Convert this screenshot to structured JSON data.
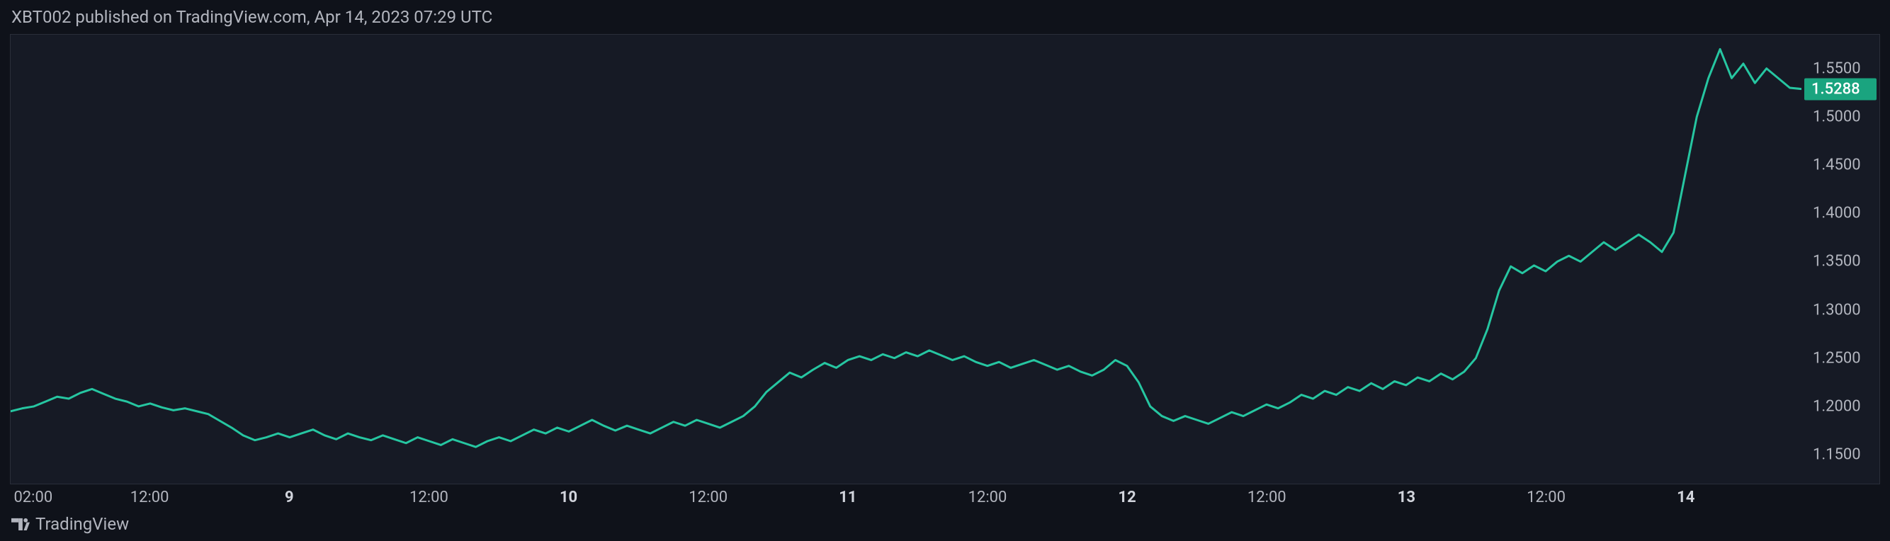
{
  "header": {
    "text": "XBT002 published on TradingView.com, Apr 14, 2023 07:29 UTC"
  },
  "footer": {
    "brand": "TradingView"
  },
  "chart": {
    "type": "line",
    "background_color": "#161a25",
    "page_background": "#0f121a",
    "border_color": "#2a2e39",
    "line_color": "#26c6a1",
    "line_width": 3,
    "y_axis": {
      "min": 1.12,
      "max": 1.585,
      "ticks": [
        1.15,
        1.2,
        1.25,
        1.3,
        1.35,
        1.4,
        1.45,
        1.5,
        1.55
      ],
      "tick_labels": [
        "1.1500",
        "1.2000",
        "1.2500",
        "1.3000",
        "1.3500",
        "1.4000",
        "1.4500",
        "1.5000",
        "1.5500"
      ],
      "label_color": "#b2b5be",
      "label_fontsize": 22
    },
    "price_badge": {
      "value": 1.5288,
      "label": "1.5288",
      "background": "#1aa47f",
      "color": "#ffffff"
    },
    "x_axis": {
      "min": 0,
      "max": 154,
      "ticks": [
        {
          "pos": 2,
          "label": "02:00",
          "bold": false
        },
        {
          "pos": 12,
          "label": "12:00",
          "bold": false
        },
        {
          "pos": 24,
          "label": "9",
          "bold": true
        },
        {
          "pos": 36,
          "label": "12:00",
          "bold": false
        },
        {
          "pos": 48,
          "label": "10",
          "bold": true
        },
        {
          "pos": 60,
          "label": "12:00",
          "bold": false
        },
        {
          "pos": 72,
          "label": "11",
          "bold": true
        },
        {
          "pos": 84,
          "label": "12:00",
          "bold": false
        },
        {
          "pos": 96,
          "label": "12",
          "bold": true
        },
        {
          "pos": 108,
          "label": "12:00",
          "bold": false
        },
        {
          "pos": 120,
          "label": "13",
          "bold": true
        },
        {
          "pos": 132,
          "label": "12:00",
          "bold": false
        },
        {
          "pos": 144,
          "label": "14",
          "bold": true
        }
      ],
      "label_color": "#b2b5be",
      "label_fontsize": 22
    },
    "series": [
      {
        "x": 0,
        "y": 1.195
      },
      {
        "x": 1,
        "y": 1.198
      },
      {
        "x": 2,
        "y": 1.2
      },
      {
        "x": 3,
        "y": 1.205
      },
      {
        "x": 4,
        "y": 1.21
      },
      {
        "x": 5,
        "y": 1.208
      },
      {
        "x": 6,
        "y": 1.214
      },
      {
        "x": 7,
        "y": 1.218
      },
      {
        "x": 8,
        "y": 1.213
      },
      {
        "x": 9,
        "y": 1.208
      },
      {
        "x": 10,
        "y": 1.205
      },
      {
        "x": 11,
        "y": 1.2
      },
      {
        "x": 12,
        "y": 1.203
      },
      {
        "x": 13,
        "y": 1.199
      },
      {
        "x": 14,
        "y": 1.196
      },
      {
        "x": 15,
        "y": 1.198
      },
      {
        "x": 16,
        "y": 1.195
      },
      {
        "x": 17,
        "y": 1.192
      },
      {
        "x": 18,
        "y": 1.185
      },
      {
        "x": 19,
        "y": 1.178
      },
      {
        "x": 20,
        "y": 1.17
      },
      {
        "x": 21,
        "y": 1.165
      },
      {
        "x": 22,
        "y": 1.168
      },
      {
        "x": 23,
        "y": 1.172
      },
      {
        "x": 24,
        "y": 1.168
      },
      {
        "x": 25,
        "y": 1.172
      },
      {
        "x": 26,
        "y": 1.176
      },
      {
        "x": 27,
        "y": 1.17
      },
      {
        "x": 28,
        "y": 1.166
      },
      {
        "x": 29,
        "y": 1.172
      },
      {
        "x": 30,
        "y": 1.168
      },
      {
        "x": 31,
        "y": 1.165
      },
      {
        "x": 32,
        "y": 1.17
      },
      {
        "x": 33,
        "y": 1.166
      },
      {
        "x": 34,
        "y": 1.162
      },
      {
        "x": 35,
        "y": 1.168
      },
      {
        "x": 36,
        "y": 1.164
      },
      {
        "x": 37,
        "y": 1.16
      },
      {
        "x": 38,
        "y": 1.166
      },
      {
        "x": 39,
        "y": 1.162
      },
      {
        "x": 40,
        "y": 1.158
      },
      {
        "x": 41,
        "y": 1.164
      },
      {
        "x": 42,
        "y": 1.168
      },
      {
        "x": 43,
        "y": 1.164
      },
      {
        "x": 44,
        "y": 1.17
      },
      {
        "x": 45,
        "y": 1.176
      },
      {
        "x": 46,
        "y": 1.172
      },
      {
        "x": 47,
        "y": 1.178
      },
      {
        "x": 48,
        "y": 1.174
      },
      {
        "x": 49,
        "y": 1.18
      },
      {
        "x": 50,
        "y": 1.186
      },
      {
        "x": 51,
        "y": 1.18
      },
      {
        "x": 52,
        "y": 1.175
      },
      {
        "x": 53,
        "y": 1.18
      },
      {
        "x": 54,
        "y": 1.176
      },
      {
        "x": 55,
        "y": 1.172
      },
      {
        "x": 56,
        "y": 1.178
      },
      {
        "x": 57,
        "y": 1.184
      },
      {
        "x": 58,
        "y": 1.18
      },
      {
        "x": 59,
        "y": 1.186
      },
      {
        "x": 60,
        "y": 1.182
      },
      {
        "x": 61,
        "y": 1.178
      },
      {
        "x": 62,
        "y": 1.184
      },
      {
        "x": 63,
        "y": 1.19
      },
      {
        "x": 64,
        "y": 1.2
      },
      {
        "x": 65,
        "y": 1.215
      },
      {
        "x": 66,
        "y": 1.225
      },
      {
        "x": 67,
        "y": 1.235
      },
      {
        "x": 68,
        "y": 1.23
      },
      {
        "x": 69,
        "y": 1.238
      },
      {
        "x": 70,
        "y": 1.245
      },
      {
        "x": 71,
        "y": 1.24
      },
      {
        "x": 72,
        "y": 1.248
      },
      {
        "x": 73,
        "y": 1.252
      },
      {
        "x": 74,
        "y": 1.248
      },
      {
        "x": 75,
        "y": 1.254
      },
      {
        "x": 76,
        "y": 1.25
      },
      {
        "x": 77,
        "y": 1.256
      },
      {
        "x": 78,
        "y": 1.252
      },
      {
        "x": 79,
        "y": 1.258
      },
      {
        "x": 80,
        "y": 1.253
      },
      {
        "x": 81,
        "y": 1.248
      },
      {
        "x": 82,
        "y": 1.252
      },
      {
        "x": 83,
        "y": 1.246
      },
      {
        "x": 84,
        "y": 1.242
      },
      {
        "x": 85,
        "y": 1.246
      },
      {
        "x": 86,
        "y": 1.24
      },
      {
        "x": 87,
        "y": 1.244
      },
      {
        "x": 88,
        "y": 1.248
      },
      {
        "x": 89,
        "y": 1.243
      },
      {
        "x": 90,
        "y": 1.238
      },
      {
        "x": 91,
        "y": 1.242
      },
      {
        "x": 92,
        "y": 1.236
      },
      {
        "x": 93,
        "y": 1.232
      },
      {
        "x": 94,
        "y": 1.238
      },
      {
        "x": 95,
        "y": 1.248
      },
      {
        "x": 96,
        "y": 1.242
      },
      {
        "x": 97,
        "y": 1.225
      },
      {
        "x": 98,
        "y": 1.2
      },
      {
        "x": 99,
        "y": 1.19
      },
      {
        "x": 100,
        "y": 1.185
      },
      {
        "x": 101,
        "y": 1.19
      },
      {
        "x": 102,
        "y": 1.186
      },
      {
        "x": 103,
        "y": 1.182
      },
      {
        "x": 104,
        "y": 1.188
      },
      {
        "x": 105,
        "y": 1.194
      },
      {
        "x": 106,
        "y": 1.19
      },
      {
        "x": 107,
        "y": 1.196
      },
      {
        "x": 108,
        "y": 1.202
      },
      {
        "x": 109,
        "y": 1.198
      },
      {
        "x": 110,
        "y": 1.204
      },
      {
        "x": 111,
        "y": 1.212
      },
      {
        "x": 112,
        "y": 1.208
      },
      {
        "x": 113,
        "y": 1.216
      },
      {
        "x": 114,
        "y": 1.212
      },
      {
        "x": 115,
        "y": 1.22
      },
      {
        "x": 116,
        "y": 1.216
      },
      {
        "x": 117,
        "y": 1.224
      },
      {
        "x": 118,
        "y": 1.218
      },
      {
        "x": 119,
        "y": 1.226
      },
      {
        "x": 120,
        "y": 1.222
      },
      {
        "x": 121,
        "y": 1.23
      },
      {
        "x": 122,
        "y": 1.226
      },
      {
        "x": 123,
        "y": 1.234
      },
      {
        "x": 124,
        "y": 1.228
      },
      {
        "x": 125,
        "y": 1.236
      },
      {
        "x": 126,
        "y": 1.25
      },
      {
        "x": 127,
        "y": 1.28
      },
      {
        "x": 128,
        "y": 1.32
      },
      {
        "x": 129,
        "y": 1.345
      },
      {
        "x": 130,
        "y": 1.338
      },
      {
        "x": 131,
        "y": 1.346
      },
      {
        "x": 132,
        "y": 1.34
      },
      {
        "x": 133,
        "y": 1.35
      },
      {
        "x": 134,
        "y": 1.356
      },
      {
        "x": 135,
        "y": 1.35
      },
      {
        "x": 136,
        "y": 1.36
      },
      {
        "x": 137,
        "y": 1.37
      },
      {
        "x": 138,
        "y": 1.362
      },
      {
        "x": 139,
        "y": 1.37
      },
      {
        "x": 140,
        "y": 1.378
      },
      {
        "x": 141,
        "y": 1.37
      },
      {
        "x": 142,
        "y": 1.36
      },
      {
        "x": 143,
        "y": 1.38
      },
      {
        "x": 144,
        "y": 1.44
      },
      {
        "x": 145,
        "y": 1.5
      },
      {
        "x": 146,
        "y": 1.54
      },
      {
        "x": 147,
        "y": 1.57
      },
      {
        "x": 148,
        "y": 1.54
      },
      {
        "x": 149,
        "y": 1.555
      },
      {
        "x": 150,
        "y": 1.535
      },
      {
        "x": 151,
        "y": 1.55
      },
      {
        "x": 152,
        "y": 1.54
      },
      {
        "x": 153,
        "y": 1.53
      },
      {
        "x": 154,
        "y": 1.5288
      }
    ]
  }
}
